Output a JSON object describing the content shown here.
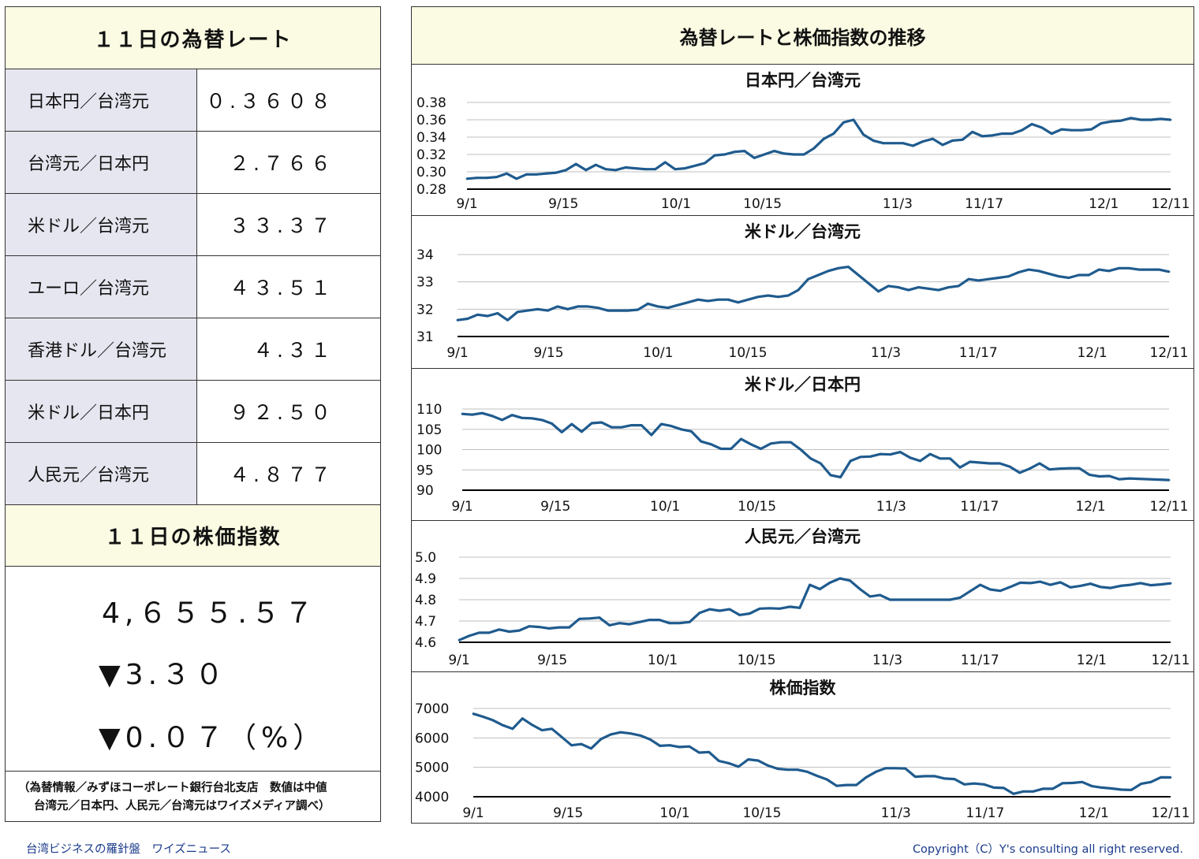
{
  "rates": {
    "title": "１１日の為替レート",
    "rows": [
      {
        "name": "日本円／台湾元",
        "value": "０.３６０８"
      },
      {
        "name": "台湾元／日本円",
        "value": "２.７６６"
      },
      {
        "name": "米ドル／台湾元",
        "value": "３３.３７"
      },
      {
        "name": "ユーロ／台湾元",
        "value": "４３.５１"
      },
      {
        "name": "香港ドル／台湾元",
        "value": "４.３１"
      },
      {
        "name": "米ドル／日本円",
        "value": "９２.５０"
      },
      {
        "name": "人民元／台湾元",
        "value": "４.８７７"
      }
    ]
  },
  "stock": {
    "title": "１１日の株価指数",
    "value": "4,６５５.５７",
    "change": "▼3.３０",
    "change_pct": "▼0.０７（%）"
  },
  "source": {
    "line1": "（為替情報／みずほコーポレート銀行台北支店　数値は中値",
    "line2": "台湾元／日本円、人民元／台湾元はワイズメディア調べ）"
  },
  "footer": {
    "left": "台湾ビジネスの羅針盤　ワイズニュース",
    "right": "Copyright（C）Y's consulting all right reserved."
  },
  "right_title": "為替レートと株価指数の推移",
  "colors": {
    "line": "#1f5b8e",
    "header_bg": "#fbfbe3",
    "label_bg": "#e6e6f0"
  },
  "chart_data": [
    {
      "type": "line",
      "title": "日本円／台湾元",
      "x_tick_labels": [
        "9/1",
        "9/15",
        "10/1",
        "10/15",
        "11/3",
        "11/17",
        "12/1",
        "12/11"
      ],
      "y_tick_labels": [
        "0.38",
        "0.36",
        "0.34",
        "0.32",
        "0.30",
        "0.28"
      ],
      "ylim": [
        0.28,
        0.38
      ],
      "values": [
        0.292,
        0.293,
        0.293,
        0.294,
        0.298,
        0.292,
        0.297,
        0.297,
        0.298,
        0.299,
        0.302,
        0.309,
        0.302,
        0.308,
        0.303,
        0.302,
        0.305,
        0.304,
        0.303,
        0.303,
        0.311,
        0.303,
        0.304,
        0.307,
        0.31,
        0.319,
        0.32,
        0.323,
        0.324,
        0.316,
        0.32,
        0.324,
        0.321,
        0.32,
        0.32,
        0.327,
        0.338,
        0.344,
        0.357,
        0.36,
        0.343,
        0.336,
        0.333,
        0.333,
        0.333,
        0.33,
        0.335,
        0.338,
        0.331,
        0.336,
        0.337,
        0.346,
        0.341,
        0.342,
        0.344,
        0.344,
        0.348,
        0.355,
        0.351,
        0.344,
        0.349,
        0.348,
        0.348,
        0.349,
        0.356,
        0.358,
        0.359,
        0.362,
        0.36,
        0.36,
        0.361,
        0.36
      ]
    },
    {
      "type": "line",
      "title": "米ドル／台湾元",
      "x_tick_labels": [
        "9/1",
        "9/15",
        "10/1",
        "10/15",
        "11/3",
        "11/17",
        "12/1",
        "12/11"
      ],
      "y_tick_labels": [
        "34",
        "33",
        "32",
        "31"
      ],
      "ylim": [
        31,
        34
      ],
      "values": [
        31.6,
        31.65,
        31.8,
        31.75,
        31.85,
        31.6,
        31.9,
        31.95,
        32.0,
        31.95,
        32.1,
        32.0,
        32.1,
        32.1,
        32.05,
        31.95,
        31.95,
        31.95,
        31.98,
        32.2,
        32.1,
        32.05,
        32.15,
        32.25,
        32.35,
        32.3,
        32.35,
        32.35,
        32.25,
        32.35,
        32.45,
        32.5,
        32.45,
        32.5,
        32.7,
        33.1,
        33.25,
        33.4,
        33.5,
        33.55,
        33.25,
        32.95,
        32.65,
        32.85,
        32.8,
        32.7,
        32.8,
        32.75,
        32.7,
        32.8,
        32.85,
        33.1,
        33.05,
        33.1,
        33.15,
        33.2,
        33.35,
        33.45,
        33.4,
        33.3,
        33.2,
        33.15,
        33.25,
        33.25,
        33.45,
        33.4,
        33.5,
        33.5,
        33.45,
        33.45,
        33.45,
        33.37
      ]
    },
    {
      "type": "line",
      "title": "米ドル／日本円",
      "x_tick_labels": [
        "9/1",
        "9/15",
        "10/1",
        "10/15",
        "11/3",
        "11/17",
        "12/1",
        "12/11"
      ],
      "y_tick_labels": [
        "110",
        "105",
        "100",
        "95",
        "90"
      ],
      "ylim": [
        90,
        110
      ],
      "values": [
        108.8,
        108.6,
        109.0,
        108.3,
        107.3,
        108.5,
        107.8,
        107.7,
        107.3,
        106.4,
        104.3,
        106.3,
        104.4,
        106.5,
        106.7,
        105.5,
        105.5,
        106.0,
        106.0,
        103.6,
        106.3,
        105.8,
        105.0,
        104.5,
        102.0,
        101.3,
        100.2,
        100.2,
        102.6,
        101.3,
        100.2,
        101.5,
        101.8,
        101.8,
        100.0,
        97.8,
        96.6,
        93.7,
        93.2,
        97.2,
        98.2,
        98.3,
        98.9,
        98.8,
        99.4,
        98.0,
        97.2,
        98.9,
        97.8,
        97.8,
        95.6,
        97.0,
        96.8,
        96.6,
        96.6,
        95.8,
        94.3,
        95.3,
        96.6,
        95.1,
        95.3,
        95.4,
        95.4,
        93.8,
        93.4,
        93.5,
        92.7,
        92.9,
        92.8,
        92.7,
        92.6,
        92.5
      ]
    },
    {
      "type": "line",
      "title": "人民元／台湾元",
      "x_tick_labels": [
        "9/1",
        "9/15",
        "10/1",
        "10/15",
        "11/3",
        "11/17",
        "12/1",
        "12/11"
      ],
      "y_tick_labels": [
        "5.0",
        "4.9",
        "4.8",
        "4.7",
        "4.6"
      ],
      "ylim": [
        4.6,
        5.0
      ],
      "values": [
        4.61,
        4.63,
        4.645,
        4.645,
        4.66,
        4.65,
        4.655,
        4.675,
        4.672,
        4.665,
        4.67,
        4.67,
        4.71,
        4.712,
        4.716,
        4.68,
        4.69,
        4.685,
        4.695,
        4.705,
        4.705,
        4.69,
        4.69,
        4.695,
        4.738,
        4.755,
        4.748,
        4.755,
        4.728,
        4.735,
        4.758,
        4.76,
        4.758,
        4.767,
        4.762,
        4.87,
        4.85,
        4.88,
        4.9,
        4.89,
        4.85,
        4.815,
        4.822,
        4.8,
        4.8,
        4.8,
        4.8,
        4.8,
        4.8,
        4.8,
        4.81,
        4.84,
        4.87,
        4.848,
        4.842,
        4.86,
        4.88,
        4.878,
        4.885,
        4.87,
        4.882,
        4.858,
        4.865,
        4.875,
        4.86,
        4.855,
        4.865,
        4.87,
        4.878,
        4.868,
        4.872,
        4.877
      ]
    },
    {
      "type": "line",
      "title": "株価指数",
      "x_tick_labels": [
        "9/1",
        "9/15",
        "10/1",
        "10/15",
        "11/3",
        "11/17",
        "12/1",
        "12/11"
      ],
      "y_tick_labels": [
        "7000",
        "6000",
        "5000",
        "4000"
      ],
      "ylim": [
        4000,
        7000
      ],
      "values": [
        6820,
        6720,
        6600,
        6430,
        6310,
        6660,
        6440,
        6260,
        6310,
        6030,
        5750,
        5790,
        5640,
        5960,
        6120,
        6190,
        6150,
        6080,
        5950,
        5730,
        5750,
        5690,
        5710,
        5500,
        5520,
        5220,
        5140,
        5020,
        5270,
        5230,
        5060,
        4950,
        4920,
        4920,
        4850,
        4710,
        4590,
        4370,
        4400,
        4400,
        4660,
        4850,
        4970,
        4970,
        4960,
        4680,
        4700,
        4700,
        4620,
        4600,
        4420,
        4450,
        4420,
        4310,
        4300,
        4100,
        4180,
        4180,
        4270,
        4270,
        4460,
        4470,
        4500,
        4360,
        4310,
        4280,
        4240,
        4230,
        4440,
        4500,
        4660,
        4655
      ]
    }
  ]
}
